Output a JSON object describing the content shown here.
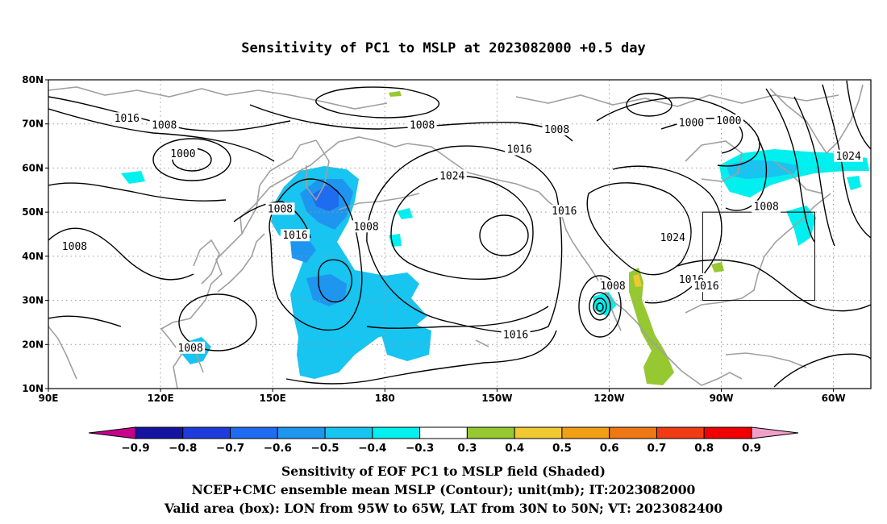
{
  "title": "Sensitivity of PC1 to MSLP at 2023082000 +0.5 day",
  "map": {
    "projection": "cylindrical equidistant",
    "lon_range": [
      90,
      310
    ],
    "lat_range": [
      10,
      80
    ],
    "lat_ticks": [
      {
        "lat": 80,
        "label": "80N"
      },
      {
        "lat": 70,
        "label": "70N"
      },
      {
        "lat": 60,
        "label": "60N"
      },
      {
        "lat": 50,
        "label": "50N"
      },
      {
        "lat": 40,
        "label": "40N"
      },
      {
        "lat": 30,
        "label": "30N"
      },
      {
        "lat": 20,
        "label": "20N"
      },
      {
        "lat": 10,
        "label": "10N"
      }
    ],
    "lon_ticks": [
      {
        "lon": 90,
        "label": "90E"
      },
      {
        "lon": 120,
        "label": "120E"
      },
      {
        "lon": 150,
        "label": "150E"
      },
      {
        "lon": 180,
        "label": "180"
      },
      {
        "lon": 210,
        "label": "150W"
      },
      {
        "lon": 240,
        "label": "120W"
      },
      {
        "lon": 270,
        "label": "90W"
      },
      {
        "lon": 300,
        "label": "60W"
      }
    ],
    "valid_box": {
      "lon_west": 265,
      "lon_east": 295,
      "lat_south": 30,
      "lat_north": 50
    },
    "contour_labels": [
      {
        "text": "1016",
        "lon": 111,
        "lat": 71
      },
      {
        "text": "1008",
        "lon": 121,
        "lat": 69.5
      },
      {
        "text": "1000",
        "lon": 126,
        "lat": 63
      },
      {
        "text": "1008",
        "lon": 97,
        "lat": 42
      },
      {
        "text": "1008",
        "lon": 128,
        "lat": 19
      },
      {
        "text": "1008",
        "lon": 152,
        "lat": 50.5
      },
      {
        "text": "1016",
        "lon": 156,
        "lat": 44.5
      },
      {
        "text": "1008",
        "lon": 175,
        "lat": 46.5
      },
      {
        "text": "1008",
        "lon": 190,
        "lat": 69.5
      },
      {
        "text": "1016",
        "lon": 216,
        "lat": 64
      },
      {
        "text": "1024",
        "lon": 198,
        "lat": 58
      },
      {
        "text": "1008",
        "lon": 226,
        "lat": 68.5
      },
      {
        "text": "1016",
        "lon": 228,
        "lat": 50
      },
      {
        "text": "1016",
        "lon": 215,
        "lat": 22
      },
      {
        "text": "1008",
        "lon": 241,
        "lat": 33
      },
      {
        "text": "1024",
        "lon": 257,
        "lat": 44
      },
      {
        "text": "1016",
        "lon": 262,
        "lat": 34.5
      },
      {
        "text": "1016",
        "lon": 266,
        "lat": 33
      },
      {
        "text": "1000",
        "lon": 262,
        "lat": 70
      },
      {
        "text": "1000",
        "lon": 272,
        "lat": 70.5
      },
      {
        "text": "1008",
        "lon": 282,
        "lat": 51
      },
      {
        "text": "1024",
        "lon": 304,
        "lat": 62.5
      }
    ],
    "colors": {
      "contour": "#000000",
      "coast": "#a0a0a0",
      "grid": "#9a9a9a"
    }
  },
  "colorbar": {
    "labels": [
      "-0.9",
      "-0.8",
      "-0.7",
      "-0.6",
      "-0.5",
      "-0.4",
      "-0.3",
      "0.3",
      "0.4",
      "0.5",
      "0.6",
      "0.7",
      "0.8",
      "0.9"
    ],
    "colors": [
      "#c8008c",
      "#1414a0",
      "#1e3cdc",
      "#1e6cf0",
      "#1e96f0",
      "#18c4f0",
      "#00f0f0",
      "#ffffff",
      "#96c832",
      "#f0c832",
      "#f0a014",
      "#f07814",
      "#f03c14",
      "#f00000",
      "#f0a0c8"
    ]
  },
  "captions": [
    "Sensitivity of EOF PC1 to MSLP field (Shaded)",
    "NCEP+CMC ensemble mean MSLP (Contour); unit(mb); IT:2023082000",
    "Valid area (box): LON from 95W to 65W, LAT from 30N to 50N; VT: 2023082400"
  ]
}
